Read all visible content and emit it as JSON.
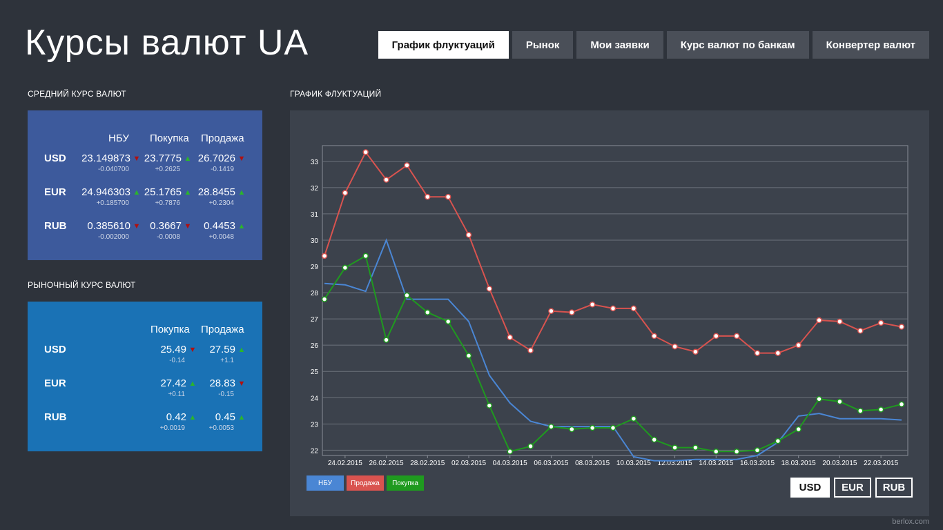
{
  "app": {
    "title": "Курсы валют UA",
    "watermark": "berlox.com"
  },
  "tabs": [
    {
      "label": "График флуктуаций",
      "active": true
    },
    {
      "label": "Рынок",
      "active": false
    },
    {
      "label": "Мои заявки",
      "active": false
    },
    {
      "label": "Курс валют по банкам",
      "active": false
    },
    {
      "label": "Конвертер валют",
      "active": false
    }
  ],
  "nbu_panel": {
    "title": "СРЕДНИЙ КУРС ВАЛЮТ",
    "color": "#3d5a9c",
    "headers": {
      "nbu": "НБУ",
      "buy": "Покупка",
      "sell": "Продажа"
    },
    "rows": [
      {
        "currency": "USD",
        "nbu": "23.149873",
        "nbu_change": "-0.040700",
        "nbu_dir": "down",
        "buy": "23.7775",
        "buy_change": "+0.2625",
        "buy_dir": "up",
        "sell": "26.7026",
        "sell_change": "-0.1419",
        "sell_dir": "down"
      },
      {
        "currency": "EUR",
        "nbu": "24.946303",
        "nbu_change": "+0.185700",
        "nbu_dir": "up",
        "buy": "25.1765",
        "buy_change": "+0.7876",
        "buy_dir": "up",
        "sell": "28.8455",
        "sell_change": "+0.2304",
        "sell_dir": "up"
      },
      {
        "currency": "RUB",
        "nbu": "0.385610",
        "nbu_change": "-0.002000",
        "nbu_dir": "down",
        "buy": "0.3667",
        "buy_change": "-0.0008",
        "buy_dir": "down",
        "sell": "0.4453",
        "sell_change": "+0.0048",
        "sell_dir": "up"
      }
    ]
  },
  "market_panel": {
    "title": "РЫНОЧНЫЙ КУРС ВАЛЮТ",
    "color": "#1a72b5",
    "headers": {
      "buy": "Покупка",
      "sell": "Продажа"
    },
    "rows": [
      {
        "currency": "USD",
        "buy": "25.49",
        "buy_change": "-0.14",
        "buy_dir": "down",
        "sell": "27.59",
        "sell_change": "+1.1",
        "sell_dir": "up"
      },
      {
        "currency": "EUR",
        "buy": "27.42",
        "buy_change": "+0.11",
        "buy_dir": "up",
        "sell": "28.83",
        "sell_change": "-0.15",
        "sell_dir": "down"
      },
      {
        "currency": "RUB",
        "buy": "0.42",
        "buy_change": "+0.0019",
        "buy_dir": "up",
        "sell": "0.45",
        "sell_change": "+0.0053",
        "sell_dir": "up"
      }
    ]
  },
  "chart_section": {
    "title": "ГРАФИК ФЛУКТУАЦИЙ"
  },
  "currency_buttons": [
    {
      "label": "USD",
      "active": true
    },
    {
      "label": "EUR",
      "active": false
    },
    {
      "label": "RUB",
      "active": false
    }
  ],
  "chart_data": {
    "type": "line",
    "title": "",
    "xlabel": "",
    "ylabel": "",
    "ylim": [
      21.8,
      33.6
    ],
    "yticks": [
      22,
      23,
      24,
      25,
      26,
      27,
      28,
      29,
      30,
      31,
      32,
      33
    ],
    "grid": true,
    "legend_position": "bottom-left",
    "x": [
      "23.02.2015",
      "24.02.2015",
      "25.02.2015",
      "26.02.2015",
      "27.02.2015",
      "28.02.2015",
      "01.03.2015",
      "02.03.2015",
      "03.03.2015",
      "04.03.2015",
      "05.03.2015",
      "06.03.2015",
      "07.03.2015",
      "08.03.2015",
      "09.03.2015",
      "10.03.2015",
      "11.03.2015",
      "12.03.2015",
      "13.03.2015",
      "14.03.2015",
      "15.03.2015",
      "16.03.2015",
      "17.03.2015",
      "18.03.2015",
      "19.03.2015",
      "20.03.2015",
      "21.03.2015",
      "22.03.2015",
      "23.03.2015"
    ],
    "xtick_labels": [
      "24.02.2015",
      "26.02.2015",
      "28.02.2015",
      "02.03.2015",
      "04.03.2015",
      "06.03.2015",
      "08.03.2015",
      "10.03.2015",
      "12.03.2015",
      "14.03.2015",
      "16.03.2015",
      "18.03.2015",
      "20.03.2015",
      "22.03.2015"
    ],
    "series": [
      {
        "name": "НБУ",
        "color": "#4a86d4",
        "markers": false,
        "values": [
          28.35,
          28.3,
          28.05,
          30.0,
          27.75,
          27.75,
          27.75,
          26.9,
          24.85,
          23.8,
          23.1,
          22.9,
          22.9,
          22.9,
          22.9,
          21.75,
          21.6,
          21.6,
          21.65,
          21.65,
          21.65,
          21.8,
          22.3,
          23.3,
          23.4,
          23.2,
          23.2,
          23.2,
          23.15
        ]
      },
      {
        "name": "Продажа",
        "color": "#d9534f",
        "markers": true,
        "values": [
          29.4,
          31.8,
          33.35,
          32.3,
          32.85,
          31.65,
          31.65,
          30.2,
          28.15,
          26.3,
          25.8,
          27.3,
          27.25,
          27.55,
          27.4,
          27.4,
          26.35,
          25.95,
          25.75,
          26.35,
          26.35,
          25.7,
          25.7,
          26.0,
          26.95,
          26.9,
          26.55,
          26.85,
          26.7
        ]
      },
      {
        "name": "Покупка",
        "color": "#1f9a1f",
        "markers": true,
        "values": [
          27.75,
          28.95,
          29.4,
          26.2,
          27.9,
          27.25,
          26.9,
          25.6,
          23.7,
          21.95,
          22.15,
          22.9,
          22.8,
          22.85,
          22.85,
          23.2,
          22.4,
          22.1,
          22.1,
          21.95,
          21.95,
          22.0,
          22.35,
          22.8,
          23.95,
          23.85,
          23.5,
          23.55,
          23.75
        ]
      }
    ]
  }
}
